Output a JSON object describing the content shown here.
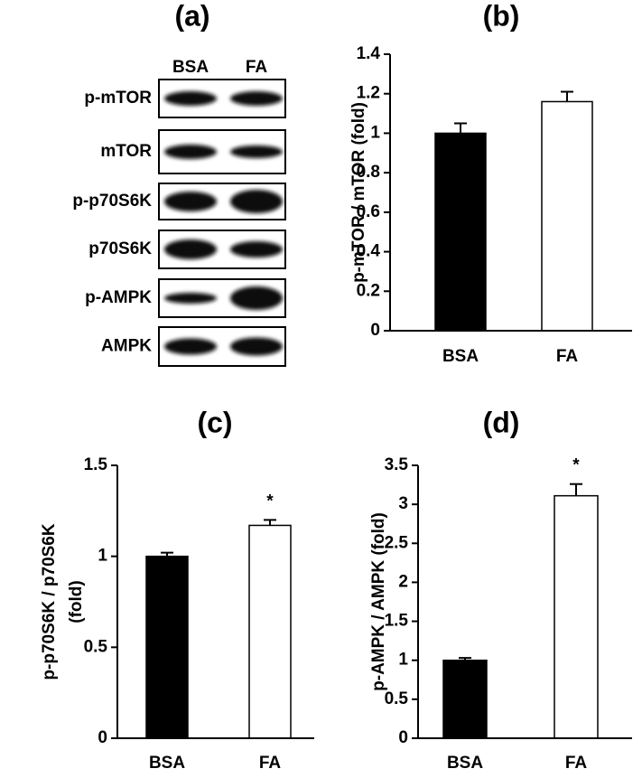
{
  "blot": {
    "label": "(a)",
    "columns": [
      "BSA",
      "FA"
    ],
    "rows": [
      "p-mTOR",
      "mTOR",
      "p-p70S6K",
      "p70S6K",
      "p-AMPK",
      "AMPK"
    ]
  },
  "chart_data": [
    {
      "type": "bar",
      "title": "(b)",
      "ylabel": [
        "p-mTOR / mTOR (fold)"
      ],
      "categories": [
        "BSA",
        "FA"
      ],
      "values": [
        1.0,
        1.16
      ],
      "errors": [
        0.05,
        0.05
      ],
      "colors": [
        "#000000",
        "#ffffff"
      ],
      "significance": [
        null,
        null
      ],
      "ylim": [
        0,
        1.4
      ],
      "yticks": [
        0,
        0.2,
        0.4,
        0.6,
        0.8,
        1,
        1.2,
        1.4
      ]
    },
    {
      "type": "bar",
      "title": "(c)",
      "ylabel": [
        "p-p70S6K / p70S6K",
        "(fold)"
      ],
      "categories": [
        "BSA",
        "FA"
      ],
      "values": [
        1.0,
        1.17
      ],
      "errors": [
        0.02,
        0.03
      ],
      "colors": [
        "#000000",
        "#ffffff"
      ],
      "significance": [
        null,
        "*"
      ],
      "ylim": [
        0,
        1.5
      ],
      "yticks": [
        0,
        0.5,
        1,
        1.5
      ]
    },
    {
      "type": "bar",
      "title": "(d)",
      "ylabel": [
        "p-AMPK / AMPK (fold)"
      ],
      "categories": [
        "BSA",
        "FA"
      ],
      "values": [
        1.0,
        3.11
      ],
      "errors": [
        0.03,
        0.15
      ],
      "colors": [
        "#000000",
        "#ffffff"
      ],
      "significance": [
        null,
        "*"
      ],
      "ylim": [
        0,
        3.5
      ],
      "yticks": [
        0,
        0.5,
        1,
        1.5,
        2,
        2.5,
        3,
        3.5
      ]
    }
  ]
}
